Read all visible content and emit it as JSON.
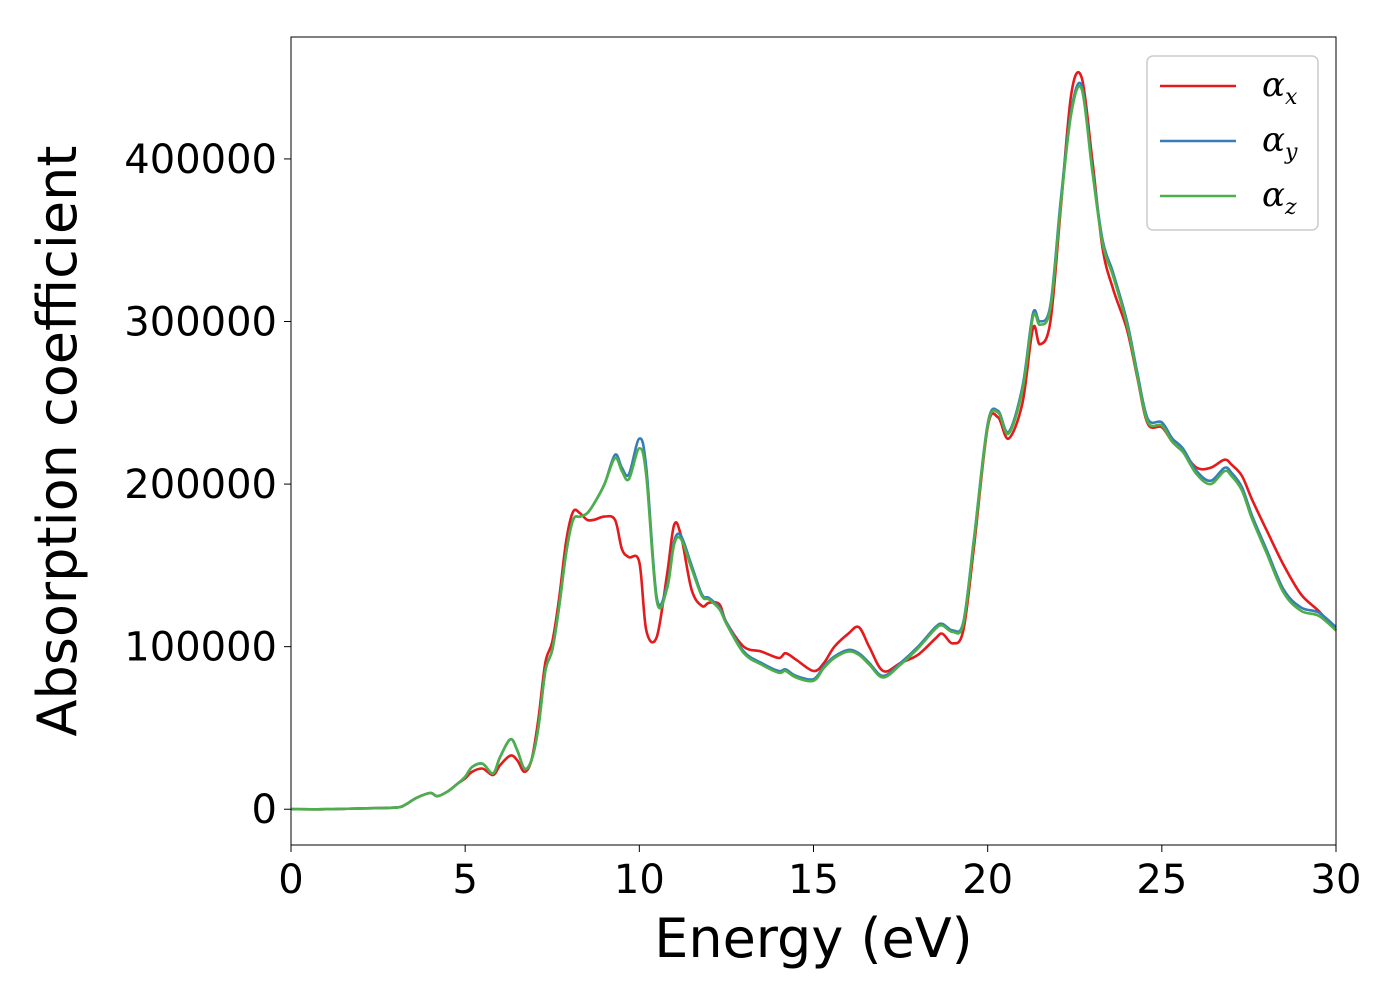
{
  "chart_data": {
    "type": "line",
    "xlabel": "Energy (eV)",
    "ylabel": "Absorption coefficient",
    "xlim": [
      0,
      30
    ],
    "ylim": [
      -22000,
      475000
    ],
    "xticks": [
      0,
      5,
      10,
      15,
      20,
      25,
      30
    ],
    "xtick_labels": [
      "0",
      "5",
      "10",
      "15",
      "20",
      "25",
      "30"
    ],
    "yticks": [
      0,
      100000,
      200000,
      300000,
      400000
    ],
    "ytick_labels": [
      "0",
      "100000",
      "200000",
      "300000",
      "400000"
    ],
    "grid": false,
    "legend_position": "top-right",
    "series": [
      {
        "name": "α",
        "subscript": "x",
        "color": "#e41a1c",
        "x": [
          0,
          1,
          2,
          3,
          3.3,
          3.6,
          4.0,
          4.2,
          4.5,
          4.8,
          5.0,
          5.2,
          5.5,
          5.8,
          6.0,
          6.3,
          6.5,
          6.7,
          6.9,
          7.1,
          7.3,
          7.5,
          7.7,
          7.9,
          8.1,
          8.3,
          8.5,
          8.7,
          9.0,
          9.3,
          9.5,
          9.7,
          10.0,
          10.2,
          10.5,
          10.8,
          11.0,
          11.2,
          11.5,
          11.8,
          12.0,
          12.3,
          12.5,
          13.0,
          13.5,
          14.0,
          14.2,
          14.5,
          15.0,
          15.3,
          15.6,
          16.0,
          16.3,
          16.6,
          17.0,
          17.5,
          18.0,
          18.5,
          18.7,
          19.0,
          19.3,
          19.6,
          20.0,
          20.3,
          20.6,
          21.0,
          21.3,
          21.5,
          21.8,
          22.1,
          22.4,
          22.7,
          23.0,
          23.3,
          23.6,
          24.0,
          24.3,
          24.6,
          25.0,
          25.3,
          25.6,
          26.0,
          26.4,
          26.8,
          27.0,
          27.3,
          27.6,
          28.0,
          28.5,
          29.0,
          29.5,
          30.0
        ],
        "y": [
          0,
          0,
          500,
          1000,
          3000,
          7000,
          10000,
          8000,
          11000,
          16000,
          19000,
          23000,
          25000,
          21000,
          27000,
          33000,
          30000,
          23000,
          30000,
          55000,
          90000,
          103000,
          130000,
          165000,
          183000,
          182000,
          178000,
          178000,
          180000,
          178000,
          160000,
          155000,
          152000,
          110000,
          106000,
          145000,
          175000,
          168000,
          135000,
          125000,
          127000,
          126000,
          115000,
          100000,
          97000,
          93000,
          96000,
          92000,
          85000,
          90000,
          100000,
          108000,
          112000,
          100000,
          85000,
          90000,
          95000,
          105000,
          108000,
          102000,
          110000,
          160000,
          235000,
          241000,
          228000,
          250000,
          296000,
          286000,
          300000,
          370000,
          440000,
          450000,
          400000,
          345000,
          320000,
          295000,
          265000,
          237000,
          235000,
          226000,
          220000,
          210000,
          210000,
          215000,
          212000,
          205000,
          190000,
          172000,
          150000,
          132000,
          122000,
          110000
        ]
      },
      {
        "name": "α",
        "subscript": "y",
        "color": "#377eb8",
        "x": [
          0,
          1,
          2,
          3,
          3.3,
          3.6,
          4.0,
          4.2,
          4.5,
          4.8,
          5.0,
          5.2,
          5.5,
          5.8,
          6.0,
          6.3,
          6.5,
          6.7,
          6.9,
          7.1,
          7.3,
          7.5,
          7.7,
          7.9,
          8.1,
          8.3,
          8.5,
          8.7,
          9.0,
          9.3,
          9.5,
          9.7,
          10.0,
          10.2,
          10.5,
          10.8,
          11.0,
          11.2,
          11.5,
          11.8,
          12.0,
          12.3,
          12.5,
          13.0,
          13.5,
          14.0,
          14.2,
          14.5,
          15.0,
          15.3,
          15.6,
          16.0,
          16.3,
          16.6,
          17.0,
          17.5,
          18.0,
          18.5,
          18.7,
          19.0,
          19.3,
          19.6,
          20.0,
          20.3,
          20.6,
          21.0,
          21.3,
          21.5,
          21.8,
          22.1,
          22.4,
          22.7,
          23.0,
          23.3,
          23.6,
          24.0,
          24.3,
          24.6,
          25.0,
          25.3,
          25.6,
          26.0,
          26.4,
          26.8,
          27.0,
          27.3,
          27.6,
          28.0,
          28.5,
          29.0,
          29.5,
          30.0
        ],
        "y": [
          0,
          0,
          500,
          1000,
          3000,
          7000,
          10000,
          8000,
          11000,
          16000,
          20000,
          26000,
          28000,
          22000,
          32000,
          43000,
          36000,
          25000,
          30000,
          50000,
          85000,
          98000,
          125000,
          158000,
          178000,
          180000,
          182000,
          188000,
          200000,
          218000,
          210000,
          206000,
          228000,
          210000,
          130000,
          138000,
          165000,
          168000,
          150000,
          132000,
          130000,
          124000,
          115000,
          97000,
          90000,
          85000,
          86000,
          82000,
          80000,
          88000,
          94000,
          98000,
          96000,
          90000,
          82000,
          90000,
          100000,
          112000,
          114000,
          110000,
          115000,
          165000,
          237000,
          245000,
          232000,
          260000,
          305000,
          300000,
          310000,
          375000,
          430000,
          445000,
          395000,
          350000,
          330000,
          300000,
          268000,
          240000,
          238000,
          228000,
          222000,
          208000,
          202000,
          210000,
          207000,
          198000,
          180000,
          160000,
          135000,
          124000,
          121000,
          112000
        ]
      },
      {
        "name": "α",
        "subscript": "z",
        "color": "#4daf4a",
        "x": [
          0,
          1,
          2,
          3,
          3.3,
          3.6,
          4.0,
          4.2,
          4.5,
          4.8,
          5.0,
          5.2,
          5.5,
          5.8,
          6.0,
          6.3,
          6.5,
          6.7,
          6.9,
          7.1,
          7.3,
          7.5,
          7.7,
          7.9,
          8.1,
          8.3,
          8.5,
          8.7,
          9.0,
          9.3,
          9.5,
          9.7,
          10.0,
          10.2,
          10.5,
          10.8,
          11.0,
          11.2,
          11.5,
          11.8,
          12.0,
          12.3,
          12.5,
          13.0,
          13.5,
          14.0,
          14.2,
          14.5,
          15.0,
          15.3,
          15.6,
          16.0,
          16.3,
          16.6,
          17.0,
          17.5,
          18.0,
          18.5,
          18.7,
          19.0,
          19.3,
          19.6,
          20.0,
          20.3,
          20.6,
          21.0,
          21.3,
          21.5,
          21.8,
          22.1,
          22.4,
          22.7,
          23.0,
          23.3,
          23.6,
          24.0,
          24.3,
          24.6,
          25.0,
          25.3,
          25.6,
          26.0,
          26.4,
          26.8,
          27.0,
          27.3,
          27.6,
          28.0,
          28.5,
          29.0,
          29.5,
          30.0
        ],
        "y": [
          0,
          0,
          500,
          1000,
          3000,
          7000,
          10000,
          8000,
          11000,
          16000,
          20000,
          26000,
          28000,
          22000,
          32000,
          43000,
          36000,
          25000,
          30000,
          50000,
          85000,
          98000,
          125000,
          158000,
          178000,
          180000,
          182000,
          188000,
          200000,
          216000,
          208000,
          203000,
          222000,
          205000,
          128000,
          136000,
          163000,
          166000,
          148000,
          131000,
          129000,
          123000,
          114000,
          96000,
          89000,
          84000,
          85000,
          81000,
          79000,
          87000,
          93000,
          97000,
          95000,
          89000,
          81000,
          89000,
          99000,
          111000,
          113000,
          109000,
          114000,
          164000,
          236000,
          244000,
          231000,
          258000,
          303000,
          298000,
          308000,
          372000,
          428000,
          443000,
          393000,
          348000,
          328000,
          298000,
          266000,
          238000,
          236000,
          226000,
          220000,
          206000,
          200000,
          208000,
          205000,
          196000,
          178000,
          158000,
          133000,
          122000,
          119000,
          110000
        ]
      }
    ]
  }
}
